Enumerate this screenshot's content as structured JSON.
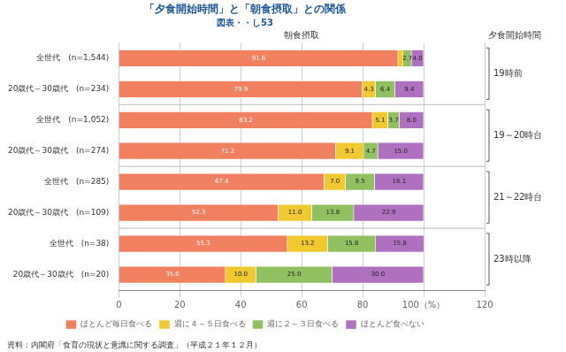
{
  "chart_data": {
    "type": "bar",
    "orientation": "horizontal",
    "stacked": true,
    "title": "「夕食開始時間」と「朝食摂取」との関係",
    "subtitle": "図表・・し53",
    "xlabel": "朝食摂取",
    "ylabel": "夕食開始時間",
    "categories": [
      "全世代　(n=1,544)",
      "20歳代～30歳代　(n=234)",
      "全世代　(n=1,052)",
      "20歳代～30歳代　(n=274)",
      "全世代　(n=285)",
      "20歳代～30歳代　(n=109)",
      "全世代　(n=38)",
      "20歳代～30歳代　(n=20)"
    ],
    "series": [
      {
        "name": "ほとんど毎日食べる",
        "color": "#F08060",
        "values": [
          91.6,
          79.9,
          83.2,
          71.2,
          67.4,
          52.3,
          55.3,
          35.0
        ],
        "value_labels": [
          "91.6",
          "79.9",
          "83.2",
          "71.2",
          "67.4",
          "52.3",
          "55.3",
          "35.0"
        ]
      },
      {
        "name": "週に４～５日食べる",
        "color": "#F0C830",
        "values": [
          1.7,
          4.3,
          5.1,
          9.1,
          7.0,
          11.0,
          13.2,
          10.0
        ],
        "value_labels": [
          null,
          "4.3",
          "5.1",
          "9.1",
          "7.0",
          "11.0",
          "13.2",
          "10.0"
        ]
      },
      {
        "name": "週に２～３日食べる",
        "color": "#90C060",
        "values": [
          2.7,
          6.4,
          3.7,
          4.7,
          9.5,
          13.8,
          15.8,
          25.0
        ],
        "value_labels": [
          "2.7",
          "6.4",
          "3.7",
          "4.7",
          "9.5",
          "13.8",
          "15.8",
          "25.0"
        ]
      },
      {
        "name": "ほとんど食べない",
        "color": "#B070C0",
        "values": [
          4.0,
          9.4,
          8.0,
          15.0,
          16.1,
          22.9,
          15.8,
          30.0
        ],
        "value_labels": [
          "4.0",
          "9.4",
          "8.0",
          "15.0",
          "16.1",
          "22.9",
          "15.8",
          "30.0"
        ]
      }
    ],
    "xlim": [
      0,
      120
    ],
    "xticks": [
      0,
      20,
      40,
      60,
      80,
      {
        "value": 100,
        "label": "100（%）"
      },
      120
    ],
    "grid": true,
    "legend": "bottom",
    "data_labels": true,
    "annotations": [
      {
        "text": "19時前",
        "from": "全世代　(n=1,544)",
        "to": "20歳代～30歳代　(n=234)"
      },
      {
        "text": "19～20時台",
        "from": "全世代　(n=1,052)",
        "to": "20歳代～30歳代　(n=274)"
      },
      {
        "text": "21～22時台",
        "from": "全世代　(n=285)",
        "to": "20歳代～30歳代　(n=109)"
      },
      {
        "text": "23時以降",
        "from": "全世代　(n=38)",
        "to": "20歳代～30歳代　(n=20)"
      },
      {
        "text": "資料：内閣府「食育の現状と意識に関する調査」（平成２１年１２月）"
      }
    ]
  }
}
